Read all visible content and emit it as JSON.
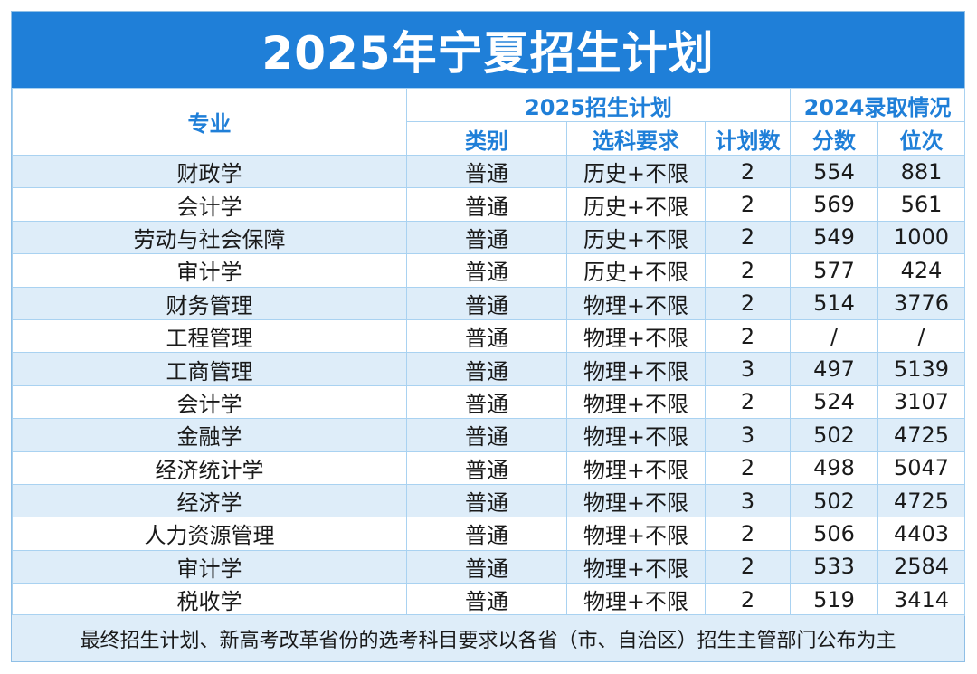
{
  "title": "2025年宁夏招生计划",
  "header": {
    "major": "专业",
    "group_plan": "2025招生计划",
    "group_history": "2024录取情况",
    "category": "类别",
    "subjects": "选科要求",
    "plan_count": "计划数",
    "score": "分数",
    "rank": "位次"
  },
  "rows": [
    {
      "major": "财政学",
      "category": "普通",
      "subjects": "历史+不限",
      "plan": "2",
      "score": "554",
      "rank": "881"
    },
    {
      "major": "会计学",
      "category": "普通",
      "subjects": "历史+不限",
      "plan": "2",
      "score": "569",
      "rank": "561"
    },
    {
      "major": "劳动与社会保障",
      "category": "普通",
      "subjects": "历史+不限",
      "plan": "2",
      "score": "549",
      "rank": "1000"
    },
    {
      "major": "审计学",
      "category": "普通",
      "subjects": "历史+不限",
      "plan": "2",
      "score": "577",
      "rank": "424"
    },
    {
      "major": "财务管理",
      "category": "普通",
      "subjects": "物理+不限",
      "plan": "2",
      "score": "514",
      "rank": "3776"
    },
    {
      "major": "工程管理",
      "category": "普通",
      "subjects": "物理+不限",
      "plan": "2",
      "score": "/",
      "rank": "/"
    },
    {
      "major": "工商管理",
      "category": "普通",
      "subjects": "物理+不限",
      "plan": "3",
      "score": "497",
      "rank": "5139"
    },
    {
      "major": "会计学",
      "category": "普通",
      "subjects": "物理+不限",
      "plan": "2",
      "score": "524",
      "rank": "3107"
    },
    {
      "major": "金融学",
      "category": "普通",
      "subjects": "物理+不限",
      "plan": "3",
      "score": "502",
      "rank": "4725"
    },
    {
      "major": "经济统计学",
      "category": "普通",
      "subjects": "物理+不限",
      "plan": "2",
      "score": "498",
      "rank": "5047"
    },
    {
      "major": "经济学",
      "category": "普通",
      "subjects": "物理+不限",
      "plan": "3",
      "score": "502",
      "rank": "4725"
    },
    {
      "major": "人力资源管理",
      "category": "普通",
      "subjects": "物理+不限",
      "plan": "2",
      "score": "506",
      "rank": "4403"
    },
    {
      "major": "审计学",
      "category": "普通",
      "subjects": "物理+不限",
      "plan": "2",
      "score": "533",
      "rank": "2584"
    },
    {
      "major": "税收学",
      "category": "普通",
      "subjects": "物理+不限",
      "plan": "2",
      "score": "519",
      "rank": "3414"
    }
  ],
  "footer": "最终招生计划、新高考改革省份的选考科目要求以各省（市、自治区）招生主管部门公布为主",
  "colors": {
    "accent": "#1f7fd8",
    "row_alt": "#deedf9",
    "border": "#a9d2f1"
  }
}
